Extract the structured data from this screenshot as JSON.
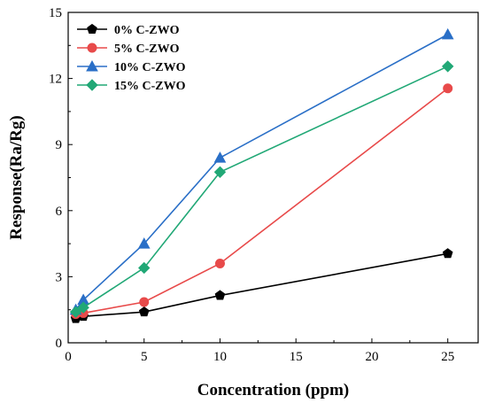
{
  "chart_data": {
    "type": "line",
    "title": "",
    "xlabel": "Concentration (ppm)",
    "ylabel": "Response(Ra/Rg)",
    "xlim": [
      0,
      27
    ],
    "ylim": [
      0,
      15
    ],
    "xticks": [
      0,
      5,
      10,
      15,
      20,
      25
    ],
    "yticks": [
      0,
      3,
      6,
      9,
      12,
      15
    ],
    "grid": false,
    "legend_position": "top-left",
    "x": [
      0.5,
      1,
      5,
      10,
      25
    ],
    "series": [
      {
        "name": "0% C-ZWO",
        "color": "#000000",
        "marker": "pentagon",
        "values": [
          1.1,
          1.2,
          1.4,
          2.15,
          4.05
        ]
      },
      {
        "name": "5% C-ZWO",
        "color": "#e84a4a",
        "marker": "circle",
        "values": [
          1.3,
          1.35,
          1.85,
          3.6,
          11.55
        ]
      },
      {
        "name": "10% C-ZWO",
        "color": "#2a6fc7",
        "marker": "triangle",
        "values": [
          1.5,
          1.95,
          4.5,
          8.4,
          14.0
        ]
      },
      {
        "name": "15% C-ZWO",
        "color": "#21a876",
        "marker": "diamond",
        "values": [
          1.4,
          1.6,
          3.4,
          7.75,
          12.55
        ]
      }
    ]
  }
}
